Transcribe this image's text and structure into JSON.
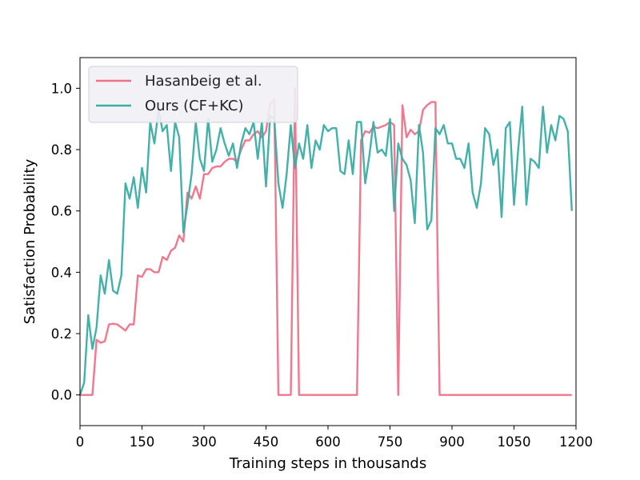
{
  "chart_data": {
    "type": "line",
    "title": "",
    "xlabel": "Training steps in thousands",
    "ylabel": "Satisfaction Probability",
    "xlim": [
      0,
      1200
    ],
    "ylim": [
      -0.1,
      1.1
    ],
    "xticks": [
      0,
      150,
      300,
      450,
      600,
      750,
      900,
      1050,
      1200
    ],
    "yticks": [
      0.0,
      0.2,
      0.4,
      0.6,
      0.8,
      1.0
    ],
    "legend_position": "upper-left",
    "series": [
      {
        "name": "Hasanbeig et al.",
        "color": "#f07088",
        "points": [
          [
            0,
            0
          ],
          [
            10,
            0
          ],
          [
            20,
            0
          ],
          [
            30,
            0
          ],
          [
            40,
            0.18
          ],
          [
            50,
            0.17
          ],
          [
            60,
            0.175
          ],
          [
            70,
            0.23
          ],
          [
            80,
            0.232
          ],
          [
            90,
            0.23
          ],
          [
            100,
            0.22
          ],
          [
            110,
            0.21
          ],
          [
            120,
            0.23
          ],
          [
            130,
            0.23
          ],
          [
            140,
            0.39
          ],
          [
            150,
            0.385
          ],
          [
            160,
            0.41
          ],
          [
            170,
            0.41
          ],
          [
            180,
            0.4
          ],
          [
            190,
            0.4
          ],
          [
            200,
            0.45
          ],
          [
            210,
            0.44
          ],
          [
            220,
            0.47
          ],
          [
            230,
            0.48
          ],
          [
            240,
            0.52
          ],
          [
            250,
            0.5
          ],
          [
            260,
            0.66
          ],
          [
            270,
            0.64
          ],
          [
            280,
            0.68
          ],
          [
            290,
            0.64
          ],
          [
            300,
            0.72
          ],
          [
            310,
            0.72
          ],
          [
            320,
            0.74
          ],
          [
            330,
            0.745
          ],
          [
            340,
            0.745
          ],
          [
            350,
            0.76
          ],
          [
            360,
            0.77
          ],
          [
            370,
            0.77
          ],
          [
            380,
            0.76
          ],
          [
            390,
            0.8
          ],
          [
            400,
            0.83
          ],
          [
            410,
            0.83
          ],
          [
            420,
            0.85
          ],
          [
            430,
            0.86
          ],
          [
            440,
            0.84
          ],
          [
            450,
            0.86
          ],
          [
            460,
            0.95
          ],
          [
            470,
            0.965
          ],
          [
            480,
            0
          ],
          [
            490,
            0
          ],
          [
            500,
            0
          ],
          [
            510,
            0
          ],
          [
            520,
            1.0
          ],
          [
            530,
            0
          ],
          [
            540,
            0
          ],
          [
            600,
            0
          ],
          [
            660,
            0
          ],
          [
            670,
            0
          ],
          [
            680,
            0.83
          ],
          [
            690,
            0.86
          ],
          [
            700,
            0.855
          ],
          [
            710,
            0.875
          ],
          [
            720,
            0.87
          ],
          [
            730,
            0.875
          ],
          [
            740,
            0.88
          ],
          [
            750,
            0.89
          ],
          [
            760,
            0.88
          ],
          [
            770,
            0
          ],
          [
            780,
            0.945
          ],
          [
            790,
            0.84
          ],
          [
            800,
            0.865
          ],
          [
            810,
            0.85
          ],
          [
            820,
            0.86
          ],
          [
            830,
            0.93
          ],
          [
            840,
            0.945
          ],
          [
            850,
            0.955
          ],
          [
            860,
            0.955
          ],
          [
            870,
            0
          ],
          [
            880,
            0
          ],
          [
            1000,
            0
          ],
          [
            1100,
            0
          ],
          [
            1190,
            0
          ]
        ]
      },
      {
        "name": "Ours (CF+KC)",
        "color": "#3aada4",
        "points": [
          [
            0,
            0
          ],
          [
            10,
            0.04
          ],
          [
            20,
            0.26
          ],
          [
            30,
            0.15
          ],
          [
            40,
            0.22
          ],
          [
            50,
            0.39
          ],
          [
            60,
            0.33
          ],
          [
            70,
            0.44
          ],
          [
            80,
            0.34
          ],
          [
            90,
            0.33
          ],
          [
            100,
            0.39
          ],
          [
            110,
            0.69
          ],
          [
            120,
            0.64
          ],
          [
            130,
            0.71
          ],
          [
            140,
            0.61
          ],
          [
            150,
            0.74
          ],
          [
            160,
            0.66
          ],
          [
            170,
            0.89
          ],
          [
            180,
            0.82
          ],
          [
            190,
            0.93
          ],
          [
            200,
            0.86
          ],
          [
            210,
            0.88
          ],
          [
            220,
            0.73
          ],
          [
            230,
            0.89
          ],
          [
            240,
            0.84
          ],
          [
            250,
            0.53
          ],
          [
            260,
            0.62
          ],
          [
            270,
            0.72
          ],
          [
            280,
            0.89
          ],
          [
            290,
            0.77
          ],
          [
            300,
            0.73
          ],
          [
            310,
            0.9
          ],
          [
            320,
            0.76
          ],
          [
            330,
            0.8
          ],
          [
            340,
            0.87
          ],
          [
            350,
            0.82
          ],
          [
            360,
            0.78
          ],
          [
            370,
            0.82
          ],
          [
            380,
            0.74
          ],
          [
            390,
            0.82
          ],
          [
            400,
            0.87
          ],
          [
            410,
            0.85
          ],
          [
            420,
            0.89
          ],
          [
            430,
            0.77
          ],
          [
            440,
            0.89
          ],
          [
            450,
            0.68
          ],
          [
            460,
            0.91
          ],
          [
            470,
            0.9
          ],
          [
            480,
            0.69
          ],
          [
            490,
            0.61
          ],
          [
            500,
            0.72
          ],
          [
            510,
            0.88
          ],
          [
            520,
            0.74
          ],
          [
            530,
            0.82
          ],
          [
            540,
            0.77
          ],
          [
            550,
            0.88
          ],
          [
            560,
            0.74
          ],
          [
            570,
            0.83
          ],
          [
            580,
            0.8
          ],
          [
            590,
            0.88
          ],
          [
            600,
            0.86
          ],
          [
            610,
            0.87
          ],
          [
            620,
            0.87
          ],
          [
            630,
            0.73
          ],
          [
            640,
            0.72
          ],
          [
            650,
            0.83
          ],
          [
            660,
            0.72
          ],
          [
            670,
            0.89
          ],
          [
            680,
            0.89
          ],
          [
            690,
            0.69
          ],
          [
            700,
            0.78
          ],
          [
            710,
            0.89
          ],
          [
            720,
            0.79
          ],
          [
            730,
            0.8
          ],
          [
            740,
            0.78
          ],
          [
            750,
            0.9
          ],
          [
            760,
            0.6
          ],
          [
            770,
            0.82
          ],
          [
            780,
            0.77
          ],
          [
            790,
            0.75
          ],
          [
            800,
            0.7
          ],
          [
            810,
            0.56
          ],
          [
            820,
            0.88
          ],
          [
            830,
            0.79
          ],
          [
            840,
            0.54
          ],
          [
            850,
            0.57
          ],
          [
            860,
            0.87
          ],
          [
            870,
            0.85
          ],
          [
            880,
            0.88
          ],
          [
            890,
            0.82
          ],
          [
            900,
            0.82
          ],
          [
            910,
            0.77
          ],
          [
            920,
            0.77
          ],
          [
            930,
            0.74
          ],
          [
            940,
            0.82
          ],
          [
            950,
            0.66
          ],
          [
            960,
            0.61
          ],
          [
            970,
            0.69
          ],
          [
            980,
            0.87
          ],
          [
            990,
            0.85
          ],
          [
            1000,
            0.75
          ],
          [
            1010,
            0.8
          ],
          [
            1020,
            0.58
          ],
          [
            1030,
            0.87
          ],
          [
            1040,
            0.89
          ],
          [
            1050,
            0.62
          ],
          [
            1060,
            0.8
          ],
          [
            1070,
            0.94
          ],
          [
            1080,
            0.62
          ],
          [
            1090,
            0.77
          ],
          [
            1100,
            0.76
          ],
          [
            1110,
            0.74
          ],
          [
            1120,
            0.94
          ],
          [
            1130,
            0.79
          ],
          [
            1140,
            0.88
          ],
          [
            1150,
            0.83
          ],
          [
            1160,
            0.91
          ],
          [
            1170,
            0.9
          ],
          [
            1180,
            0.86
          ],
          [
            1190,
            0.6
          ]
        ]
      }
    ]
  }
}
